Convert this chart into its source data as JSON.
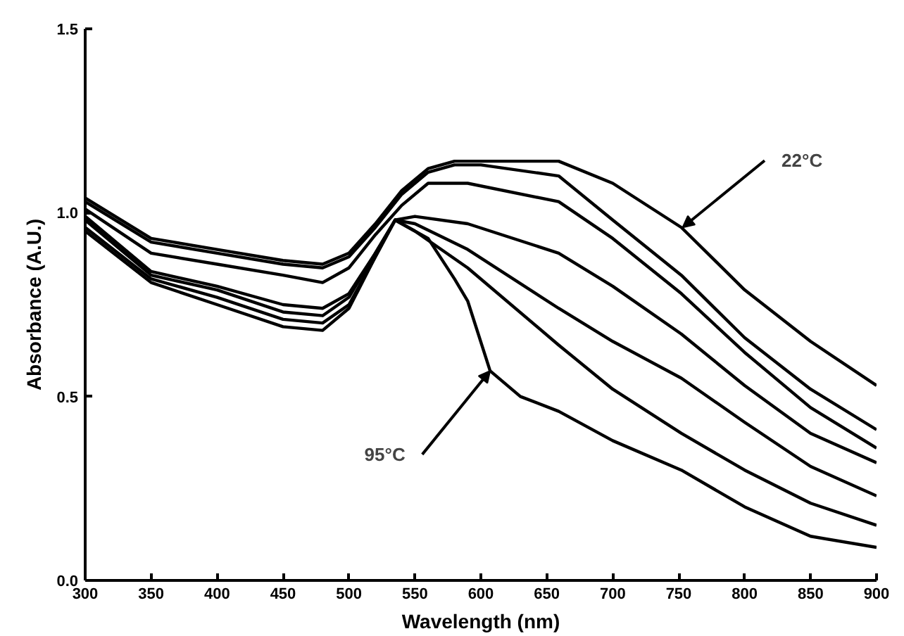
{
  "chart_data": {
    "type": "line",
    "xlabel": "Wavelength (nm)",
    "ylabel": "Absorbance (A.U.)",
    "xlim": [
      300,
      900
    ],
    "ylim": [
      0,
      1.5
    ],
    "xticks": [
      300,
      350,
      400,
      450,
      500,
      550,
      600,
      650,
      700,
      750,
      800,
      850,
      900
    ],
    "yticks": [
      {
        "value": 0,
        "label": "0.0"
      },
      {
        "value": 0.5,
        "label": "0.5"
      },
      {
        "value": 1,
        "label": "1.0"
      },
      {
        "value": 1.5,
        "label": "1.5"
      }
    ],
    "grid": false,
    "marker": "none",
    "line_style": "solid",
    "annotations": [
      {
        "text": "22°C",
        "x": 753,
        "y": 0.96
      },
      {
        "text": "95°C",
        "x": 607,
        "y": 0.57
      }
    ],
    "series": [
      {
        "color": "#000000",
        "x": [
          300,
          350,
          400,
          450,
          480,
          500,
          520,
          540,
          560,
          580,
          600,
          659,
          700,
          752,
          800,
          850,
          900
        ],
        "values": [
          1.04,
          0.93,
          0.9,
          0.87,
          0.86,
          0.89,
          0.97,
          1.06,
          1.12,
          1.14,
          1.14,
          1.14,
          1.08,
          0.96,
          0.79,
          0.65,
          0.53
        ]
      },
      {
        "color": "#000000",
        "x": [
          300,
          350,
          400,
          450,
          480,
          500,
          520,
          540,
          560,
          580,
          600,
          659,
          700,
          752,
          800,
          850,
          900
        ],
        "values": [
          1.03,
          0.92,
          0.89,
          0.86,
          0.85,
          0.88,
          0.96,
          1.05,
          1.11,
          1.13,
          1.13,
          1.1,
          0.98,
          0.83,
          0.66,
          0.52,
          0.41
        ]
      },
      {
        "color": "#000000",
        "x": [
          300,
          350,
          400,
          450,
          480,
          500,
          520,
          540,
          560,
          590,
          659,
          700,
          752,
          800,
          850,
          900
        ],
        "values": [
          1.01,
          0.89,
          0.86,
          0.83,
          0.81,
          0.85,
          0.94,
          1.02,
          1.08,
          1.08,
          1.03,
          0.93,
          0.78,
          0.62,
          0.47,
          0.36
        ]
      },
      {
        "color": "#000000",
        "x": [
          300,
          350,
          400,
          450,
          480,
          500,
          520,
          535,
          550,
          590,
          659,
          700,
          752,
          800,
          850,
          900
        ],
        "values": [
          0.99,
          0.84,
          0.8,
          0.75,
          0.74,
          0.78,
          0.89,
          0.98,
          0.99,
          0.97,
          0.89,
          0.8,
          0.67,
          0.53,
          0.4,
          0.32
        ]
      },
      {
        "color": "#000000",
        "x": [
          300,
          350,
          400,
          450,
          480,
          500,
          520,
          535,
          550,
          590,
          659,
          700,
          752,
          800,
          850,
          900
        ],
        "values": [
          0.98,
          0.83,
          0.79,
          0.73,
          0.72,
          0.77,
          0.89,
          0.98,
          0.97,
          0.9,
          0.74,
          0.65,
          0.55,
          0.43,
          0.31,
          0.23
        ]
      },
      {
        "color": "#000000",
        "x": [
          300,
          350,
          400,
          450,
          480,
          500,
          520,
          535,
          550,
          590,
          659,
          700,
          752,
          800,
          850,
          900
        ],
        "values": [
          0.96,
          0.82,
          0.77,
          0.71,
          0.7,
          0.75,
          0.88,
          0.98,
          0.95,
          0.85,
          0.64,
          0.52,
          0.4,
          0.3,
          0.21,
          0.15
        ]
      },
      {
        "color": "#000000",
        "x": [
          300,
          350,
          400,
          450,
          480,
          500,
          520,
          535,
          560,
          580,
          590,
          607,
          630,
          659,
          700,
          752,
          800,
          850,
          900
        ],
        "values": [
          0.95,
          0.81,
          0.75,
          0.69,
          0.68,
          0.74,
          0.88,
          0.98,
          0.93,
          0.82,
          0.76,
          0.57,
          0.5,
          0.46,
          0.38,
          0.3,
          0.2,
          0.12,
          0.09
        ]
      }
    ]
  }
}
